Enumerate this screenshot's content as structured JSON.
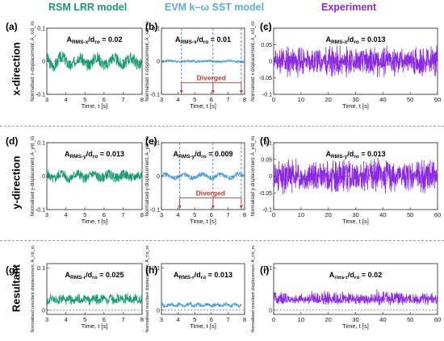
{
  "headers": [
    {
      "label": "RSM LRR model",
      "color": "#1a9a73"
    },
    {
      "label": "EVM k–ω SST model",
      "color": "#5aaee0"
    },
    {
      "label": "Experiment",
      "color": "#8a2be2"
    }
  ],
  "row_labels": [
    "x-direction",
    "y-direction",
    "Resultant"
  ],
  "colors": {
    "rsm": "#1a9a73",
    "evm": "#4a9fd8",
    "exp": "#8a2be2",
    "diverged": "#c0392b",
    "vline": "#2a6fd0"
  },
  "chart_data": [
    {
      "id": "a",
      "type": "line",
      "panel_label": "(a)",
      "annotation": "A_RMS-x/d_ro = 0.02",
      "ann_parts": [
        "A",
        "RMS-x",
        "/d",
        "ro",
        " = 0.02"
      ],
      "ylabel": "Normalised x-displacement, A_x/d_ro",
      "xlabel": "Time, t [s]",
      "xlim": [
        3,
        8
      ],
      "ylim": [
        -0.1,
        0.1
      ],
      "xticks": [
        3,
        4,
        5,
        6,
        7,
        8
      ],
      "yticks": [
        -0.1,
        0,
        0.1
      ],
      "ytick_labels": [
        "-0.1",
        "0",
        "0.1"
      ],
      "series": [
        {
          "color": "#1a9a73",
          "signal": {
            "amp": 0.028,
            "base": 0,
            "freq": 2.2,
            "noise": 0.3,
            "seed": 3,
            "x_range": [
              3,
              8
            ]
          }
        }
      ]
    },
    {
      "id": "b",
      "type": "line",
      "panel_label": "(b)",
      "annotation": "A_RMS-x/d_ro = 0.01",
      "ann_parts": [
        "A",
        "RMS-x",
        "/d",
        "ro",
        " = 0.01"
      ],
      "ylabel": "Normalised x-displacement, A_x/d_ro",
      "xlabel": "Time, t [s]",
      "xlim": [
        3,
        8
      ],
      "ylim": [
        -0.1,
        0.1
      ],
      "xticks": [
        3,
        4,
        5,
        6,
        7,
        8
      ],
      "yticks": [
        -0.1,
        0,
        0.1
      ],
      "ytick_labels": [
        "-0.1",
        "0",
        "0.1"
      ],
      "series": [
        {
          "color": "#4a9fd8",
          "signal": {
            "amp": 0.008,
            "base": 0,
            "freq": 1.6,
            "noise": 0.2,
            "seed": 7,
            "x_range": [
              3,
              8
            ]
          }
        }
      ],
      "vlines": [
        4.2,
        6.1,
        7.8
      ],
      "diverged_label": "Diverged",
      "diverged_y": -0.065
    },
    {
      "id": "c",
      "type": "line",
      "panel_label": "(c)",
      "annotation": "A_RMS-x/d_ro = 0.013",
      "ann_parts": [
        "A",
        "RMS-x",
        "/d",
        "ro",
        " = 0.013"
      ],
      "ylabel": "Normalised x-displacement, A_x/d_ro",
      "xlabel": "Time, t [s]",
      "xlim": [
        0,
        60
      ],
      "ylim": [
        -0.1,
        0.1
      ],
      "xticks": [
        0,
        10,
        20,
        30,
        40,
        50,
        60
      ],
      "yticks": [
        -0.1,
        -0.05,
        0,
        0.05,
        0.1
      ],
      "ytick_labels": [
        "-0.1",
        "-0.05",
        "0",
        "0.05",
        "0.1"
      ],
      "series": [
        {
          "color": "#8a2be2",
          "signal": {
            "amp": 0.018,
            "base": 0,
            "freq": 9.0,
            "noise": 0.8,
            "seed": 11,
            "x_range": [
              0,
              60
            ]
          }
        }
      ]
    },
    {
      "id": "d",
      "type": "line",
      "panel_label": "(d)",
      "annotation": "A_RMS-y/d_ro = 0.013",
      "ann_parts": [
        "A",
        "RMS-y",
        "/d",
        "ro",
        " = 0.013"
      ],
      "ylabel": "Normalised y-displacement, A_y/d_ro",
      "xlabel": "Time, t [s]",
      "xlim": [
        3,
        8
      ],
      "ylim": [
        -0.1,
        0.1
      ],
      "xticks": [
        3,
        4,
        5,
        6,
        7,
        8
      ],
      "yticks": [
        -0.1,
        0,
        0.1
      ],
      "ytick_labels": [
        "-0.1",
        "0",
        "0.1"
      ],
      "series": [
        {
          "color": "#1a9a73",
          "signal": {
            "amp": 0.022,
            "base": 0,
            "freq": 2.4,
            "noise": 0.3,
            "seed": 5,
            "x_range": [
              3,
              8
            ]
          }
        }
      ]
    },
    {
      "id": "e",
      "type": "line",
      "panel_label": "(e)",
      "annotation": "A_RMS-y/d_ro = 0.009",
      "ann_parts": [
        "A",
        "RMS-y",
        "/d",
        "ro",
        " = 0.009"
      ],
      "ylabel": "Normalised y-displacement, A_y/d_ro",
      "xlabel": "Time, t [s]",
      "xlim": [
        3,
        8
      ],
      "ylim": [
        -0.1,
        0.1
      ],
      "xticks": [
        3,
        4,
        5,
        6,
        7,
        8
      ],
      "yticks": [
        -0.1,
        0,
        0.1
      ],
      "ytick_labels": [
        "-0.1",
        "0",
        "0.1"
      ],
      "series": [
        {
          "color": "#4a9fd8",
          "signal": {
            "amp": 0.014,
            "base": 0,
            "freq": 1.8,
            "noise": 0.2,
            "seed": 9,
            "x_range": [
              3,
              8
            ]
          }
        }
      ],
      "vlines": [
        4.1,
        6.1,
        7.8
      ],
      "diverged_label": "Diverged",
      "diverged_y": -0.065
    },
    {
      "id": "f",
      "type": "line",
      "panel_label": "(f)",
      "annotation": "A_RMS-y/d_ro = 0.013",
      "ann_parts": [
        "A",
        "RMS-y",
        "/d",
        "ro",
        " = 0.013"
      ],
      "ylabel": "Normalised y-displacement, A_y/d_ro",
      "xlabel": "Time, t [s]",
      "xlim": [
        0,
        60
      ],
      "ylim": [
        -0.1,
        0.1
      ],
      "xticks": [
        0,
        10,
        20,
        30,
        40,
        50,
        60
      ],
      "yticks": [
        -0.1,
        -0.05,
        0,
        0.05,
        0.1
      ],
      "ytick_labels": [
        "-0.1",
        "-0.05",
        "0",
        "0.05",
        "0.1"
      ],
      "series": [
        {
          "color": "#8a2be2",
          "signal": {
            "amp": 0.02,
            "base": 0,
            "freq": 9.0,
            "noise": 0.8,
            "seed": 13,
            "x_range": [
              0,
              60
            ]
          }
        }
      ]
    },
    {
      "id": "g",
      "type": "line",
      "panel_label": "(g)",
      "annotation": "A_RMS-r/d_ro = 0.025",
      "ann_parts": [
        "A",
        "RMS-r",
        "/d",
        "ro",
        " = 0.025"
      ],
      "ylabel": "Normalised resultant displacement, A_r/d_ro",
      "xlabel": "Time, t [s]",
      "xlim": [
        3,
        8
      ],
      "ylim": [
        -0.01,
        0.11
      ],
      "xticks": [
        3,
        4,
        5,
        6,
        7,
        8
      ],
      "yticks": [
        0,
        0.1
      ],
      "ytick_labels": [
        "0",
        "0.1"
      ],
      "series": [
        {
          "color": "#1a9a73",
          "signal": {
            "amp": 0.01,
            "base": 0.02,
            "freq": 2.3,
            "noise": 0.4,
            "seed": 17,
            "rect": true,
            "x_range": [
              3,
              8
            ]
          }
        }
      ]
    },
    {
      "id": "h",
      "type": "line",
      "panel_label": "(h)",
      "annotation": "A_RMS-r/d_ro = 0.013",
      "ann_parts": [
        "A",
        "RMS-r",
        "/d",
        "ro",
        " = 0.013"
      ],
      "ylabel": "Normalised resultant displacement, A_r/d_ro",
      "xlabel": "Time, t [s]",
      "xlim": [
        3,
        8
      ],
      "ylim": [
        -0.01,
        0.11
      ],
      "xticks": [
        3,
        4,
        5,
        6,
        7,
        8
      ],
      "yticks": [
        0,
        0.1
      ],
      "ytick_labels": [
        "0",
        "0.1"
      ],
      "series": [
        {
          "color": "#4a9fd8",
          "signal": {
            "amp": 0.006,
            "base": 0.008,
            "freq": 1.8,
            "noise": 0.3,
            "seed": 19,
            "rect": true,
            "x_range": [
              3,
              7.8
            ]
          }
        }
      ]
    },
    {
      "id": "i",
      "type": "line",
      "panel_label": "(i)",
      "annotation": "A_rms-r/d_ro = 0.02",
      "ann_parts": [
        "A",
        "rms-r",
        "/d",
        "ro",
        " = 0.02"
      ],
      "ylabel": "Normalised resultant displacement, A_r/d_ro",
      "xlabel": "Time, t [s]",
      "xlim": [
        0,
        60
      ],
      "ylim": [
        -0.01,
        0.11
      ],
      "xticks": [
        0,
        10,
        20,
        30,
        40,
        50,
        60
      ],
      "yticks": [
        0,
        0.1
      ],
      "ytick_labels": [
        "0",
        "0.1"
      ],
      "series": [
        {
          "color": "#8a2be2",
          "signal": {
            "amp": 0.01,
            "base": 0.018,
            "freq": 7.0,
            "noise": 0.8,
            "seed": 23,
            "rect": true,
            "x_range": [
              0,
              60
            ]
          }
        }
      ]
    }
  ]
}
